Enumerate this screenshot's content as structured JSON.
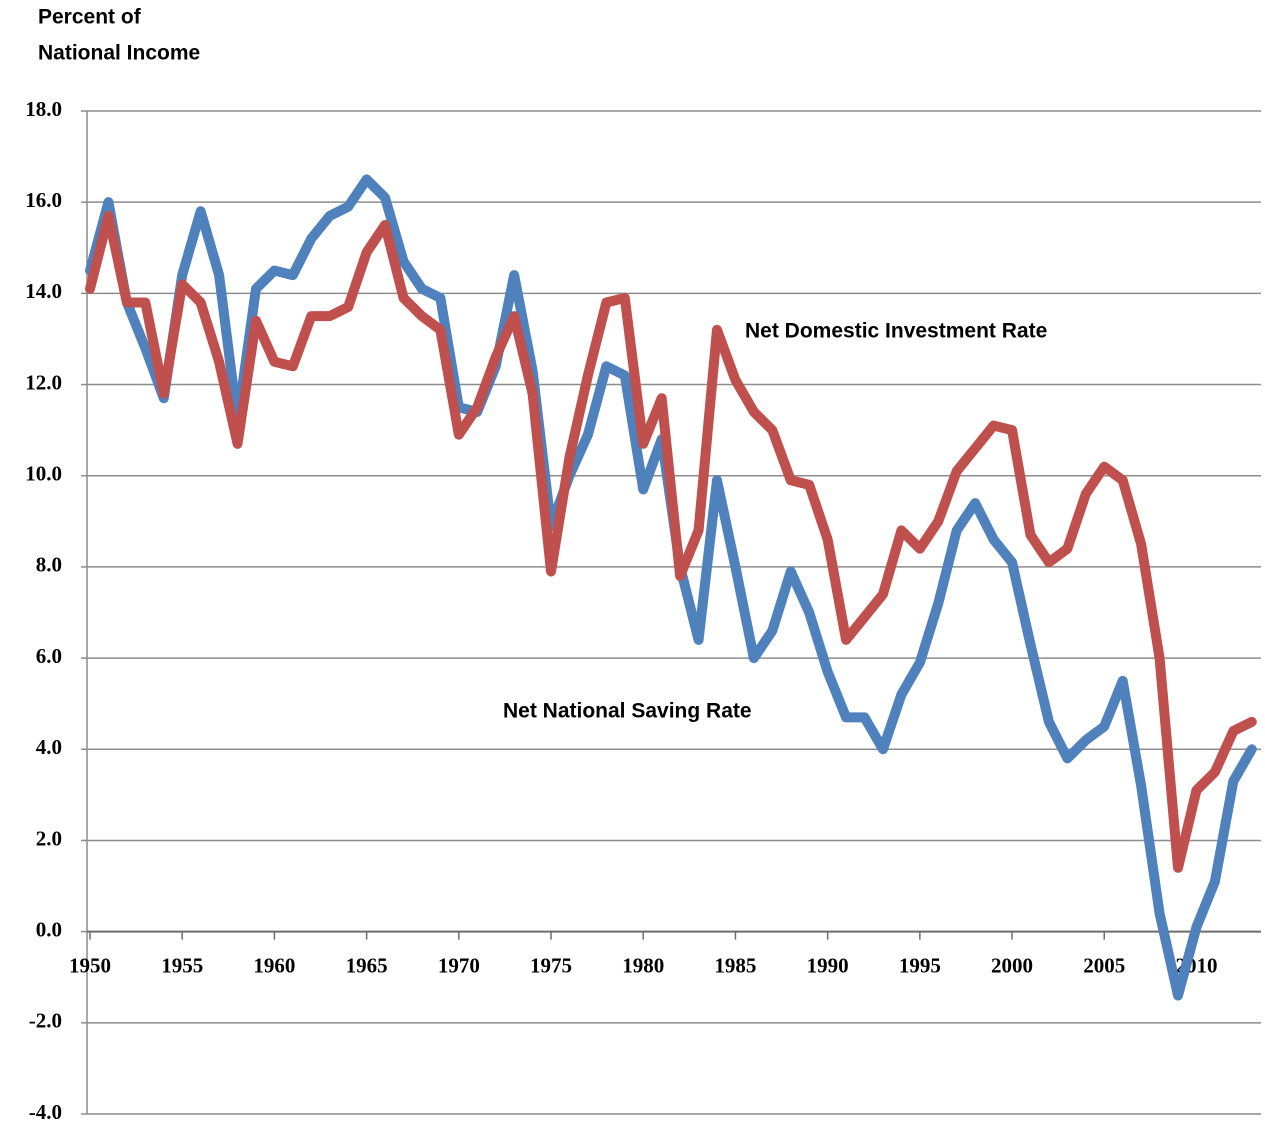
{
  "chart_data": {
    "type": "line",
    "ylabel": [
      "Percent of",
      "National Income"
    ],
    "x": [
      1950,
      1951,
      1952,
      1953,
      1954,
      1955,
      1956,
      1957,
      1958,
      1959,
      1960,
      1961,
      1962,
      1963,
      1964,
      1965,
      1966,
      1967,
      1968,
      1969,
      1970,
      1971,
      1972,
      1973,
      1974,
      1975,
      1976,
      1977,
      1978,
      1979,
      1980,
      1981,
      1982,
      1983,
      1984,
      1985,
      1986,
      1987,
      1988,
      1989,
      1990,
      1991,
      1992,
      1993,
      1994,
      1995,
      1996,
      1997,
      1998,
      1999,
      2000,
      2001,
      2002,
      2003,
      2004,
      2005,
      2006,
      2007,
      2008,
      2009,
      2010,
      2011,
      2012,
      2013
    ],
    "series": [
      {
        "name": "Net National Saving Rate",
        "color": "#4f81bd",
        "values": [
          14.5,
          16.0,
          13.8,
          12.8,
          11.7,
          14.4,
          15.8,
          14.4,
          11.2,
          14.1,
          14.5,
          14.4,
          15.2,
          15.7,
          15.9,
          16.5,
          16.1,
          14.7,
          14.1,
          13.9,
          11.5,
          11.4,
          12.4,
          14.4,
          12.3,
          8.9,
          10.0,
          10.9,
          12.4,
          12.2,
          9.7,
          10.8,
          8.0,
          6.4,
          9.9,
          8.0,
          6.0,
          6.6,
          7.9,
          7.0,
          5.7,
          4.7,
          4.7,
          4.0,
          5.2,
          5.9,
          7.2,
          8.8,
          9.4,
          8.6,
          8.1,
          6.3,
          4.6,
          3.8,
          4.2,
          4.5,
          5.5,
          3.2,
          0.4,
          -1.4,
          0.1,
          1.1,
          3.3,
          4.0
        ]
      },
      {
        "name": "Net Domestic Investment Rate",
        "color": "#c0504d",
        "values": [
          14.1,
          15.7,
          13.8,
          13.8,
          11.8,
          14.2,
          13.8,
          12.5,
          10.7,
          13.4,
          12.5,
          12.4,
          13.5,
          13.5,
          13.7,
          14.9,
          15.5,
          13.9,
          13.5,
          13.2,
          10.9,
          11.5,
          12.6,
          13.5,
          11.8,
          7.9,
          10.4,
          12.2,
          13.8,
          13.9,
          10.7,
          11.7,
          7.8,
          8.8,
          13.2,
          12.1,
          11.4,
          11.0,
          9.9,
          9.8,
          8.6,
          6.4,
          6.9,
          7.4,
          8.8,
          8.4,
          9.0,
          10.1,
          10.6,
          11.1,
          11.0,
          8.7,
          8.1,
          8.4,
          9.6,
          10.2,
          9.9,
          8.5,
          6.0,
          1.4,
          3.1,
          3.5,
          4.4,
          4.6
        ]
      }
    ],
    "xlim": [
      1950,
      2013.5
    ],
    "xticks": [
      1950,
      1955,
      1960,
      1965,
      1970,
      1975,
      1980,
      1985,
      1990,
      1995,
      2000,
      2005,
      2010
    ],
    "ylim": [
      -4,
      18
    ],
    "yticks": [
      {
        "value": -4,
        "label": "-4.0"
      },
      {
        "value": -2,
        "label": "-2.0"
      },
      {
        "value": 0,
        "label": "0.0"
      },
      {
        "value": 2,
        "label": "2.0"
      },
      {
        "value": 4,
        "label": "4.0"
      },
      {
        "value": 6,
        "label": "6.0"
      },
      {
        "value": 8,
        "label": "8.0"
      },
      {
        "value": 10,
        "label": "10.0"
      },
      {
        "value": 12,
        "label": "12.0"
      },
      {
        "value": 14,
        "label": "14.0"
      },
      {
        "value": 16,
        "label": "16.0"
      },
      {
        "value": 18,
        "label": "18.0"
      }
    ],
    "grid": true
  }
}
